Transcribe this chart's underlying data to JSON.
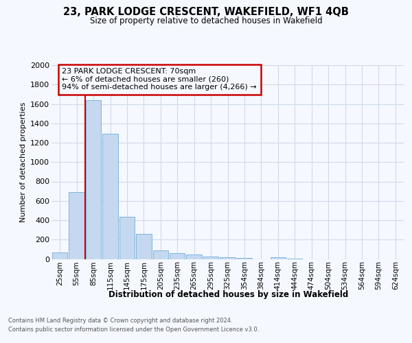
{
  "title": "23, PARK LODGE CRESCENT, WAKEFIELD, WF1 4QB",
  "subtitle": "Size of property relative to detached houses in Wakefield",
  "xlabel": "Distribution of detached houses by size in Wakefield",
  "ylabel": "Number of detached properties",
  "categories": [
    "25sqm",
    "55sqm",
    "85sqm",
    "115sqm",
    "145sqm",
    "175sqm",
    "205sqm",
    "235sqm",
    "265sqm",
    "295sqm",
    "325sqm",
    "354sqm",
    "384sqm",
    "414sqm",
    "444sqm",
    "474sqm",
    "504sqm",
    "534sqm",
    "564sqm",
    "594sqm",
    "624sqm"
  ],
  "values": [
    65,
    690,
    1640,
    1290,
    435,
    255,
    90,
    60,
    45,
    25,
    20,
    10,
    0,
    15,
    5,
    0,
    0,
    0,
    0,
    0,
    0
  ],
  "bar_color": "#c5d8f0",
  "bar_edge_color": "#6aaed6",
  "grid_color": "#d0d8e8",
  "background_color": "#f5f8ff",
  "property_line_x": 1.5,
  "property_line_color": "#cc0000",
  "annotation_line1": "23 PARK LODGE CRESCENT: 70sqm",
  "annotation_line2": "← 6% of detached houses are smaller (260)",
  "annotation_line3": "94% of semi-detached houses are larger (4,266) →",
  "annotation_box_color": "#cc0000",
  "ylim": [
    0,
    2000
  ],
  "yticks": [
    0,
    200,
    400,
    600,
    800,
    1000,
    1200,
    1400,
    1600,
    1800,
    2000
  ],
  "footer_line1": "Contains HM Land Registry data © Crown copyright and database right 2024.",
  "footer_line2": "Contains public sector information licensed under the Open Government Licence v3.0."
}
